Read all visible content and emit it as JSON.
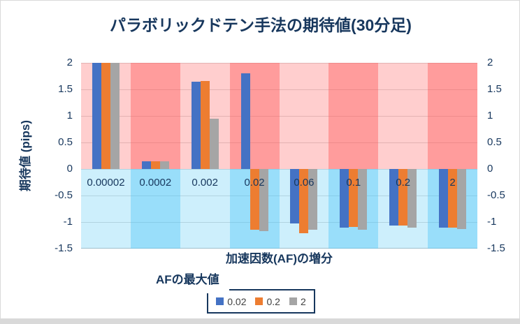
{
  "window": {
    "background": "#FFFFFF",
    "frame_border_color": "#D9D9D9",
    "bottom_strip_color": "#D9D9D9"
  },
  "chart_data": {
    "type": "bar",
    "title": "パラボリックドテン手法の期待値(30分足)",
    "xlabel": "加速因数(AF)の増分",
    "ylabel": "期待値 (pips)",
    "categories": [
      "0.00002",
      "0.0002",
      "0.002",
      "0.02",
      "0.06",
      "0.1",
      "0.2",
      "2"
    ],
    "series": [
      {
        "name": "0.02",
        "color": "#4472C4",
        "values": [
          2,
          0.14,
          1.65,
          1.8,
          -1.02,
          -1.11,
          -1.07,
          -1.11
        ]
      },
      {
        "name": "0.2",
        "color": "#ED7D31",
        "values": [
          2,
          0.14,
          1.66,
          -1.15,
          -1.21,
          -1.09,
          -1.07,
          -1.11
        ]
      },
      {
        "name": "2",
        "color": "#A5A5A5",
        "values": [
          2,
          0.14,
          0.95,
          -1.17,
          -1.15,
          -1.15,
          -1.11,
          -1.13
        ]
      }
    ],
    "ylim": [
      -1.5,
      2
    ],
    "yticks": [
      2,
      1.5,
      1,
      0.5,
      0,
      -0.5,
      -1,
      -1.5
    ],
    "grid": true,
    "secondary_y_axis": true,
    "legend": {
      "title": "AFの最大値",
      "position": "bottom",
      "items": [
        "0.02",
        "0.2",
        "2"
      ]
    },
    "colors": {
      "text": "#17375D",
      "gridline": "#D9D9D9",
      "axis_line": "#BFBFBF",
      "band_positive_light": "rgba(255,75,75,0.27)",
      "band_positive_dark": "rgba(255,75,75,0.55)",
      "band_negative_light": "rgba(70,195,245,0.27)",
      "band_negative_dark": "rgba(70,195,245,0.55)",
      "legend_text": "#404040",
      "legend_border": "#17375D"
    }
  }
}
